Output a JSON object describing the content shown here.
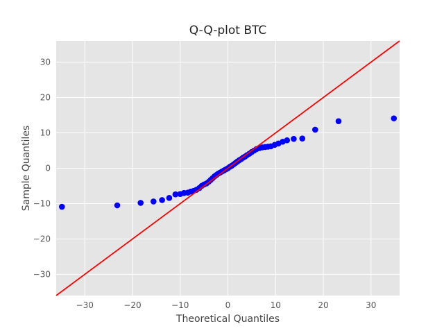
{
  "chart_data": {
    "type": "scatter",
    "title": "Q-Q-plot BTC",
    "xlabel": "Theoretical Quantiles",
    "ylabel": "Sample Quantiles",
    "xlim": [
      -36,
      36
    ],
    "ylim": [
      -36,
      36
    ],
    "xticks": [
      -30,
      -20,
      -10,
      0,
      10,
      20,
      30
    ],
    "yticks": [
      -30,
      -20,
      -10,
      0,
      10,
      20,
      30
    ],
    "xtick_labels": [
      "−30",
      "−20",
      "−10",
      "0",
      "10",
      "20",
      "30"
    ],
    "ytick_labels": [
      "−30",
      "−20",
      "−10",
      "0",
      "10",
      "20",
      "30"
    ],
    "grid": true,
    "background": "#e5e5e5",
    "grid_color": "#ffffff",
    "reference_line": {
      "slope": 1,
      "intercept": 0,
      "color": "#ff0000"
    },
    "marker_color": "#0000ff",
    "series": [
      {
        "points": [
          [
            -34.8,
            -10.9
          ],
          [
            -23.2,
            -10.5
          ],
          [
            -18.3,
            -9.8
          ],
          [
            -15.6,
            -9.4
          ],
          [
            -13.8,
            -9.0
          ],
          [
            -12.3,
            -8.4
          ],
          [
            -11.0,
            -7.4
          ],
          [
            -10.0,
            -7.3
          ],
          [
            -9.2,
            -7.0
          ],
          [
            -8.4,
            -6.9
          ],
          [
            -7.8,
            -6.6
          ],
          [
            -7.2,
            -6.4
          ],
          [
            -6.6,
            -6.1
          ],
          [
            -6.0,
            -5.6
          ],
          [
            -5.5,
            -5.0
          ],
          [
            -5.0,
            -4.6
          ],
          [
            -4.5,
            -4.3
          ],
          [
            -4.0,
            -3.8
          ],
          [
            -3.6,
            -3.3
          ],
          [
            -3.2,
            -2.8
          ],
          [
            -2.8,
            -2.3
          ],
          [
            -2.4,
            -1.9
          ],
          [
            -2.0,
            -1.5
          ],
          [
            -1.6,
            -1.2
          ],
          [
            -1.2,
            -0.9
          ],
          [
            -0.8,
            -0.6
          ],
          [
            -0.4,
            -0.3
          ],
          [
            0.0,
            0.0
          ],
          [
            0.4,
            0.4
          ],
          [
            0.8,
            0.7
          ],
          [
            1.2,
            1.1
          ],
          [
            1.6,
            1.5
          ],
          [
            2.0,
            1.9
          ],
          [
            2.4,
            2.3
          ],
          [
            2.8,
            2.6
          ],
          [
            3.2,
            3.0
          ],
          [
            3.6,
            3.3
          ],
          [
            4.0,
            3.7
          ],
          [
            4.5,
            4.1
          ],
          [
            5.0,
            4.6
          ],
          [
            5.5,
            5.0
          ],
          [
            6.0,
            5.4
          ],
          [
            6.6,
            5.7
          ],
          [
            7.2,
            5.9
          ],
          [
            7.8,
            6.0
          ],
          [
            8.4,
            6.1
          ],
          [
            9.0,
            6.2
          ],
          [
            9.8,
            6.6
          ],
          [
            10.6,
            7.0
          ],
          [
            11.5,
            7.5
          ],
          [
            12.4,
            7.9
          ],
          [
            13.8,
            8.3
          ],
          [
            15.6,
            8.4
          ],
          [
            18.3,
            10.9
          ],
          [
            23.2,
            13.3
          ],
          [
            34.8,
            14.1
          ]
        ]
      }
    ]
  }
}
